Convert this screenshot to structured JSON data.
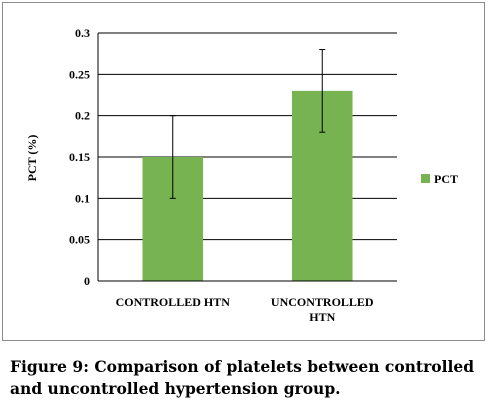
{
  "chart_data": {
    "type": "bar",
    "categories": [
      [
        "CONTROLLED HTN"
      ],
      [
        "UNCONTROLLED",
        "HTN"
      ]
    ],
    "series": [
      {
        "name": "PCT",
        "values": [
          0.15,
          0.23
        ],
        "error": [
          0.05,
          0.05
        ],
        "color": "#77b350"
      }
    ],
    "ylabel": "PCT (%)",
    "xlabel": "",
    "ylim": [
      0,
      0.3
    ],
    "yticks": [
      "0",
      "0.05",
      "0.1",
      "0.15",
      "0.2",
      "0.25",
      "0.3"
    ],
    "grid": true,
    "legend_position": "right"
  },
  "caption": {
    "line1": "Figure 9: Comparison of platelets between controlled",
    "line2": "and uncontrolled hypertension group."
  }
}
